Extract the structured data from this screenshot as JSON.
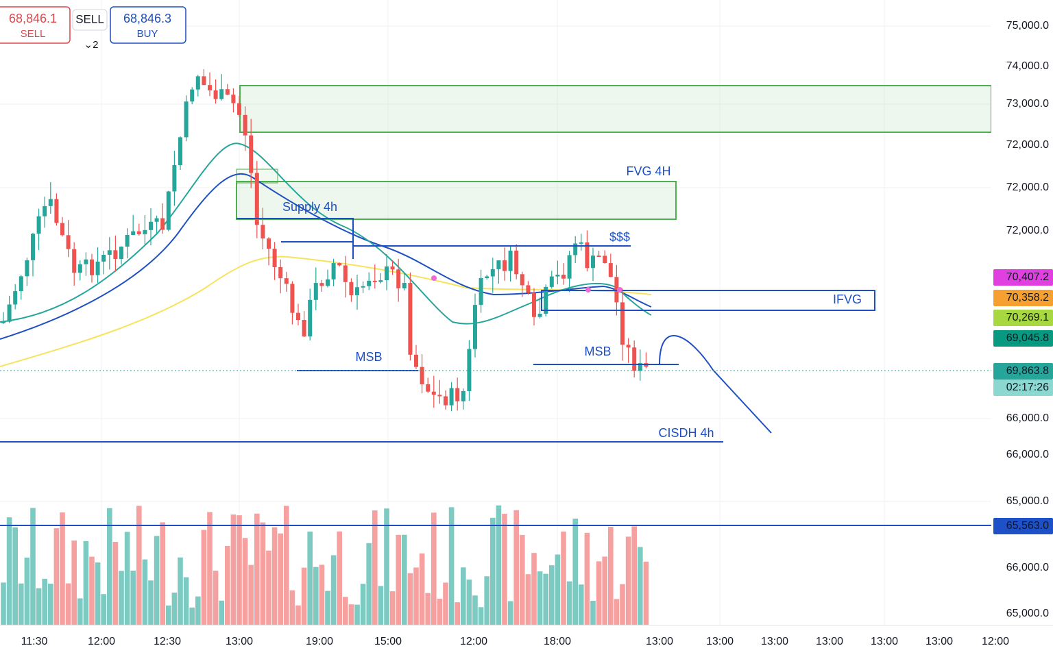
{
  "header": {
    "sell_price": "68,846.1",
    "sell_label": "SELL",
    "spread_button": "SELL",
    "order_count": "⌄2",
    "buy_price": "68,846.3",
    "buy_label": "BUY"
  },
  "price_axis": [
    "75,000.0",
    "74,000.0",
    "73,000.0",
    "72,000.0",
    "72,000.0",
    "72,000.0",
    "66,000.0",
    "66,000.0",
    "65,000.0",
    "66,000.0",
    "65,000.0"
  ],
  "badges": [
    "70,407.2",
    "70,358.2",
    "70,269.1",
    "69,045.8",
    "69,863.8",
    "02:17:26",
    "65,563.0"
  ],
  "time_axis": [
    "11:30",
    "12:00",
    "12:30",
    "13:00",
    "19:00",
    "15:00",
    "12:00",
    "18:00",
    "13:00",
    "13:00",
    "13:00",
    "13:00",
    "13:00",
    "13:00",
    "12:00"
  ],
  "annotations": [
    "FVG 4H",
    "Supply 4h",
    "$$$",
    "IFVG",
    "MSB",
    "MSB",
    "CISDH 4h"
  ]
}
